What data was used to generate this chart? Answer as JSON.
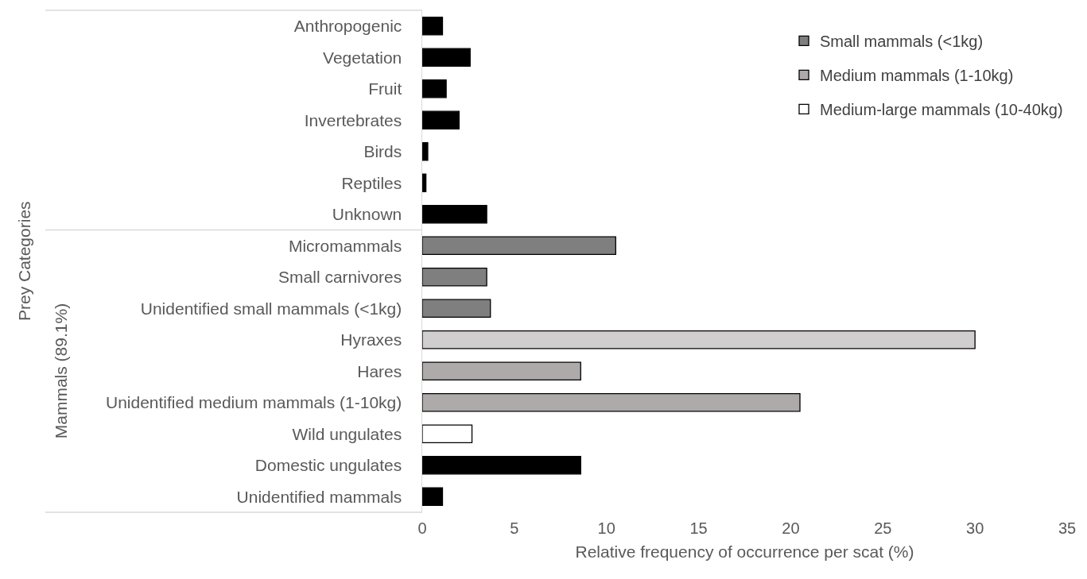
{
  "chart_data": {
    "type": "bar",
    "orientation": "horizontal",
    "xlabel": "Relative frequency of occurrence per scat (%)",
    "annotations": [
      "Prey Categories",
      "Mammals (89.1%)"
    ],
    "categories": [
      "Anthropogenic",
      "Vegetation",
      "Fruit",
      "Invertebrates",
      "Birds",
      "Reptiles",
      "Unknown",
      "Micromammals",
      "Small carnivores",
      "Unidentified small mammals (<1kg)",
      "Hyraxes",
      "Hares",
      "Unidentified medium mammals (1-10kg)",
      "Wild ungulates",
      "Domestic ungulates",
      "Unidentified mammals"
    ],
    "series": [
      {
        "color": "#000000",
        "values": [
          1.1,
          2.6,
          1.3,
          2.0,
          0.3,
          0.2,
          3.5,
          null,
          null,
          null,
          null,
          null,
          null,
          null,
          8.6,
          1.1
        ]
      },
      {
        "name": "Small mammals (<1kg)",
        "color": "#7f7f7f",
        "values": [
          null,
          null,
          null,
          null,
          null,
          null,
          null,
          10.5,
          3.5,
          3.7,
          null,
          null,
          null,
          null,
          null,
          null
        ]
      },
      {
        "name": "Medium mammals (1-10kg)",
        "color": "#aeaaaa",
        "values": [
          null,
          null,
          null,
          null,
          null,
          null,
          null,
          null,
          null,
          null,
          null,
          8.6,
          20.5,
          null,
          null,
          null
        ]
      },
      {
        "color": "#d0cece",
        "values": [
          null,
          null,
          null,
          null,
          null,
          null,
          null,
          null,
          null,
          null,
          30.0,
          null,
          null,
          null,
          null,
          null
        ]
      },
      {
        "name": "Medium-large mammals (10-40kg)",
        "color": "#ffffff",
        "values": [
          null,
          null,
          null,
          null,
          null,
          null,
          null,
          null,
          null,
          null,
          null,
          null,
          null,
          2.7,
          null,
          null
        ]
      }
    ],
    "xlim": [
      0,
      35
    ],
    "xticks": [
      0,
      5,
      10,
      15,
      20,
      25,
      30,
      35
    ],
    "legend": "top right"
  }
}
